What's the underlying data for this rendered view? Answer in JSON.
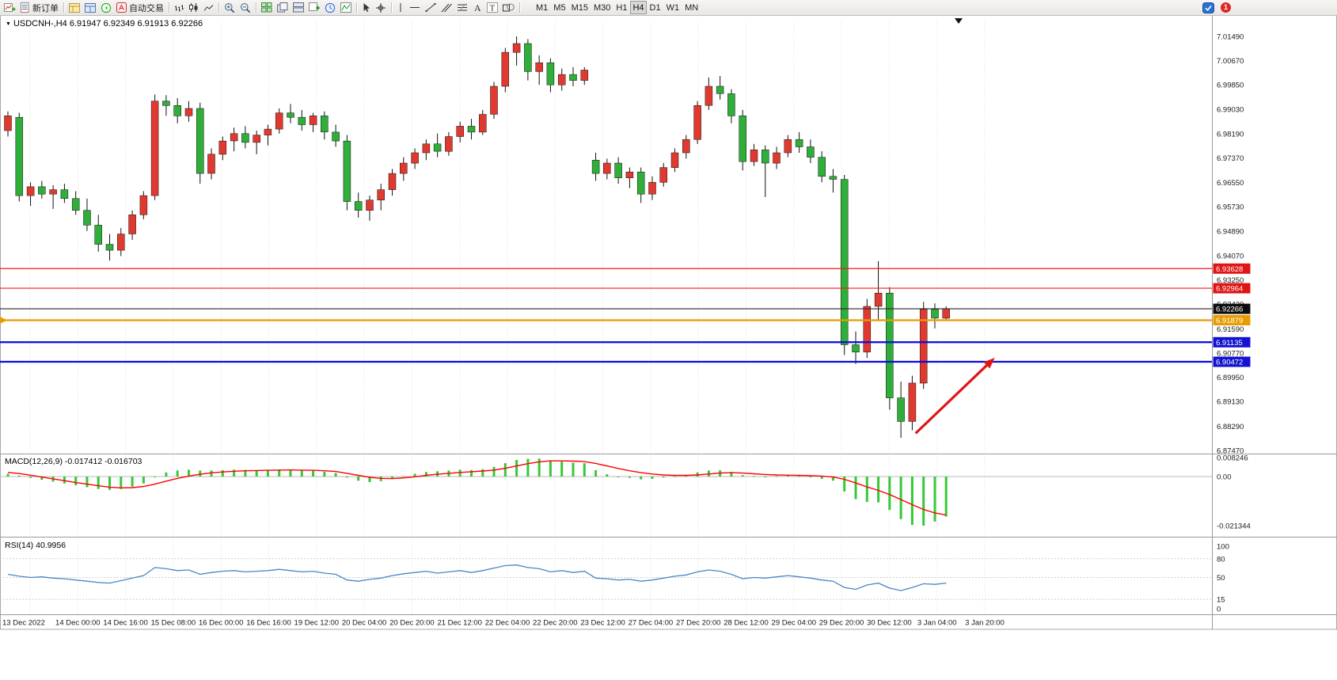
{
  "toolbar": {
    "new_order_label": "新订单",
    "autotrading_label": "自动交易",
    "timeframes": [
      "M1",
      "M5",
      "M15",
      "M30",
      "H1",
      "H4",
      "D1",
      "W1",
      "MN"
    ],
    "active_timeframe": "H4",
    "notification_count": "1"
  },
  "chart": {
    "symbol_label": "USDCNH-,H4",
    "ohlc_label": "6.91947 6.92349 6.91913 6.92266"
  },
  "chart_data": [
    {
      "type": "candlestick",
      "title": "USDCNH-,H4",
      "symbol": "USDCNH-",
      "timeframe": "H4",
      "current": {
        "open": "6.91947",
        "high": "6.92349",
        "low": "6.91913",
        "close": "6.92266"
      },
      "up_color": "#e03a30",
      "down_color": "#2fae3a",
      "ylim": [
        6.87,
        7.02
      ],
      "y_axis_labels": [
        "7.01490",
        "7.00670",
        "6.99850",
        "6.99030",
        "6.98190",
        "6.97370",
        "6.96550",
        "6.95730",
        "6.94890",
        "6.94070",
        "6.93250",
        "6.92430",
        "6.91590",
        "6.90770",
        "6.89950",
        "6.89130",
        "6.88290",
        "6.87470"
      ],
      "x_axis_labels": [
        "13 Dec 2022",
        "14 Dec 00:00",
        "14 Dec 16:00",
        "15 Dec 08:00",
        "16 Dec 00:00",
        "16 Dec 16:00",
        "19 Dec 12:00",
        "20 Dec 04:00",
        "20 Dec 20:00",
        "21 Dec 12:00",
        "22 Dec 04:00",
        "22 Dec 20:00",
        "23 Dec 12:00",
        "27 Dec 04:00",
        "27 Dec 20:00",
        "28 Dec 12:00",
        "29 Dec 04:00",
        "29 Dec 20:00",
        "30 Dec 12:00",
        "3 Jan 04:00",
        "3 Jan 20:00"
      ],
      "candles": [
        [
          6.983,
          6.9895,
          6.981,
          6.988
        ],
        [
          6.9875,
          6.989,
          6.959,
          6.961
        ],
        [
          6.961,
          6.9655,
          6.9575,
          6.964
        ],
        [
          6.964,
          6.966,
          6.96,
          6.9615
        ],
        [
          6.9615,
          6.9645,
          6.9565,
          6.963
        ],
        [
          6.963,
          6.965,
          6.9585,
          6.96
        ],
        [
          6.96,
          6.9625,
          6.9545,
          6.956
        ],
        [
          6.956,
          6.96,
          6.949,
          6.951
        ],
        [
          6.951,
          6.9545,
          6.942,
          6.9445
        ],
        [
          6.9445,
          6.948,
          6.939,
          6.9425
        ],
        [
          6.9425,
          6.95,
          6.9405,
          6.948
        ],
        [
          6.948,
          6.956,
          6.946,
          6.9545
        ],
        [
          6.9545,
          6.9625,
          6.953,
          6.961
        ],
        [
          6.961,
          6.9952,
          6.9595,
          6.993
        ],
        [
          6.993,
          6.995,
          6.988,
          6.9915
        ],
        [
          6.9915,
          6.994,
          6.9855,
          6.988
        ],
        [
          6.988,
          6.993,
          6.986,
          6.9905
        ],
        [
          6.9905,
          6.9925,
          6.965,
          6.9685
        ],
        [
          6.9685,
          6.977,
          6.9665,
          6.975
        ],
        [
          6.975,
          6.981,
          6.973,
          6.9795
        ],
        [
          6.9795,
          6.984,
          6.976,
          6.982
        ],
        [
          6.982,
          6.9845,
          6.977,
          6.979
        ],
        [
          6.979,
          6.983,
          6.975,
          6.9815
        ],
        [
          6.9815,
          6.985,
          6.978,
          6.9835
        ],
        [
          6.9835,
          6.9905,
          6.982,
          6.989
        ],
        [
          6.989,
          6.992,
          6.9855,
          6.9875
        ],
        [
          6.9875,
          6.99,
          6.983,
          6.985
        ],
        [
          6.985,
          6.989,
          6.9825,
          6.988
        ],
        [
          6.988,
          6.9895,
          6.98,
          6.9825
        ],
        [
          6.9825,
          6.985,
          6.9775,
          6.9795
        ],
        [
          6.9795,
          6.9815,
          6.956,
          6.959
        ],
        [
          6.959,
          6.962,
          6.9535,
          6.956
        ],
        [
          6.956,
          6.961,
          6.9525,
          6.9595
        ],
        [
          6.9595,
          6.965,
          6.956,
          6.963
        ],
        [
          6.963,
          6.97,
          6.961,
          6.9685
        ],
        [
          6.9685,
          6.974,
          6.966,
          6.972
        ],
        [
          6.972,
          6.977,
          6.97,
          6.9755
        ],
        [
          6.9755,
          6.98,
          6.973,
          6.9785
        ],
        [
          6.9785,
          6.982,
          6.974,
          6.976
        ],
        [
          6.976,
          6.9825,
          6.9745,
          6.981
        ],
        [
          6.981,
          6.986,
          6.979,
          6.9845
        ],
        [
          6.9845,
          6.987,
          6.98,
          6.9825
        ],
        [
          6.9825,
          6.99,
          6.9815,
          6.9885
        ],
        [
          6.9885,
          6.9995,
          6.987,
          6.998
        ],
        [
          6.998,
          7.011,
          6.996,
          7.0095
        ],
        [
          7.0095,
          7.0149,
          7.005,
          7.0125
        ],
        [
          7.0125,
          7.014,
          7.0,
          7.003
        ],
        [
          7.003,
          7.0085,
          6.9985,
          7.006
        ],
        [
          7.006,
          7.0075,
          6.996,
          6.9985
        ],
        [
          6.9985,
          7.004,
          6.9965,
          7.002
        ],
        [
          7.002,
          7.0045,
          6.998,
          7.0
        ],
        [
          7.0,
          7.0045,
          6.9985,
          7.0035
        ],
        [
          6.973,
          6.9755,
          6.966,
          6.9685
        ],
        [
          6.9685,
          6.9735,
          6.9665,
          6.972
        ],
        [
          6.972,
          6.974,
          6.965,
          6.967
        ],
        [
          6.967,
          6.9705,
          6.9635,
          6.969
        ],
        [
          6.969,
          6.9705,
          6.9585,
          6.9615
        ],
        [
          6.9615,
          6.9675,
          6.9595,
          6.9655
        ],
        [
          6.9655,
          6.972,
          6.964,
          6.9705
        ],
        [
          6.9705,
          6.977,
          6.969,
          6.9755
        ],
        [
          6.9755,
          6.9815,
          6.9735,
          6.98
        ],
        [
          6.98,
          6.993,
          6.9785,
          6.9915
        ],
        [
          6.9915,
          7.001,
          6.99,
          6.998
        ],
        [
          6.998,
          7.0015,
          6.9935,
          6.9955
        ],
        [
          6.9955,
          6.997,
          6.9855,
          6.988
        ],
        [
          6.988,
          6.99,
          6.9695,
          6.9725
        ],
        [
          6.9725,
          6.9785,
          6.971,
          6.9765
        ],
        [
          6.9765,
          6.978,
          6.9605,
          6.972
        ],
        [
          6.972,
          6.9775,
          6.97,
          6.9755
        ],
        [
          6.9755,
          6.9815,
          6.974,
          6.98
        ],
        [
          6.98,
          6.9825,
          6.9755,
          6.9775
        ],
        [
          6.9775,
          6.98,
          6.972,
          6.974
        ],
        [
          6.974,
          6.976,
          6.9655,
          6.9675
        ],
        [
          6.9675,
          6.97,
          6.962,
          6.9665
        ],
        [
          6.9665,
          6.968,
          6.907,
          6.9105
        ],
        [
          6.9105,
          6.915,
          6.904,
          6.908
        ],
        [
          6.908,
          6.926,
          6.906,
          6.9235
        ],
        [
          6.9235,
          6.9388,
          6.9185,
          6.928
        ],
        [
          6.928,
          6.93,
          6.8885,
          6.8925
        ],
        [
          6.8925,
          6.898,
          6.879,
          6.8845
        ],
        [
          6.8845,
          6.9,
          6.8815,
          6.8975
        ],
        [
          6.8975,
          6.925,
          6.8955,
          6.9225
        ],
        [
          6.9225,
          6.9245,
          6.916,
          6.9195
        ],
        [
          6.91947,
          6.92349,
          6.91913,
          6.92266
        ]
      ],
      "hlines": [
        {
          "price": 6.93628,
          "color": "#ff1414",
          "width": 1.2,
          "tag": "6.93628",
          "tag_bg": "#df1414"
        },
        {
          "price": 6.92964,
          "color": "#ff1414",
          "width": 1.2,
          "tag": "6.92964",
          "tag_bg": "#df1414"
        },
        {
          "price": 6.92266,
          "color": "#2a2a2a",
          "width": 1.1,
          "tag": "6.92266",
          "tag_bg": "#0d0d0d"
        },
        {
          "price": 6.91879,
          "color": "#e89c00",
          "width": 2.2,
          "tag": "6.91879",
          "tag_bg": "#e89c00",
          "left_marker": true
        },
        {
          "price": 6.91135,
          "color": "#0a0ae0",
          "width": 2.2,
          "tag": "6.91135",
          "tag_bg": "#1212cf"
        },
        {
          "price": 6.90472,
          "color": "#0a0ae0",
          "width": 2.2,
          "tag": "6.90472",
          "tag_bg": "#1212cf"
        }
      ],
      "annotation_arrow": {
        "color": "#e01515",
        "from": {
          "bar": 80.3,
          "price": 6.8805
        },
        "to": {
          "bar": 87.3,
          "price": 6.9061
        }
      }
    },
    {
      "type": "line",
      "title": "MACD(12,26,9)",
      "values_label": "-0.017412 -0.016703",
      "hist_color": "#35c935",
      "signal_color": "#ff0000",
      "ylim": [
        -0.0254,
        0.0089
      ],
      "y_axis_labels": [
        "0.008246",
        "0.00",
        "-0.021344"
      ],
      "histogram": [
        0.0012,
        0.0004,
        -0.0006,
        -0.0014,
        -0.0022,
        -0.003,
        -0.0038,
        -0.0046,
        -0.0054,
        -0.0058,
        -0.0054,
        -0.0044,
        -0.003,
        -0.0002,
        0.0018,
        0.0026,
        0.003,
        0.0026,
        0.0026,
        0.0028,
        0.003,
        0.0029,
        0.0028,
        0.0029,
        0.0031,
        0.003,
        0.0027,
        0.0025,
        0.0021,
        0.0015,
        -0.0004,
        -0.0018,
        -0.0024,
        -0.002,
        -0.001,
        0.0002,
        0.0012,
        0.002,
        0.0023,
        0.0026,
        0.003,
        0.0028,
        0.0032,
        0.0042,
        0.0058,
        0.0072,
        0.0077,
        0.0078,
        0.007,
        0.0065,
        0.006,
        0.0058,
        0.0028,
        0.001,
        -0.0002,
        -0.0006,
        -0.0012,
        -0.001,
        -0.0004,
        0.0002,
        0.0008,
        0.0018,
        0.0026,
        0.0027,
        0.002,
        0.0006,
        0.0002,
        0.0,
        0.0002,
        0.0005,
        0.0003,
        -0.0002,
        -0.001,
        -0.0018,
        -0.0065,
        -0.0098,
        -0.011,
        -0.0112,
        -0.0145,
        -0.0185,
        -0.021,
        -0.0213,
        -0.0196,
        -0.0174
      ],
      "signal": [
        0.0018,
        0.0013,
        0.0006,
        -0.0002,
        -0.001,
        -0.0018,
        -0.0026,
        -0.0033,
        -0.004,
        -0.0046,
        -0.0049,
        -0.0048,
        -0.0043,
        -0.0033,
        -0.002,
        -0.0008,
        0.0002,
        0.001,
        0.0016,
        0.002,
        0.0023,
        0.0025,
        0.0026,
        0.0027,
        0.0028,
        0.0029,
        0.0028,
        0.0027,
        0.0025,
        0.0022,
        0.0014,
        0.0005,
        -0.0003,
        -0.0008,
        -0.0009,
        -0.0006,
        -0.0001,
        0.0005,
        0.001,
        0.0014,
        0.0018,
        0.0021,
        0.0024,
        0.0028,
        0.0036,
        0.0046,
        0.0056,
        0.0064,
        0.0068,
        0.0068,
        0.0067,
        0.0065,
        0.0057,
        0.0046,
        0.0035,
        0.0025,
        0.0017,
        0.0011,
        0.0007,
        0.0005,
        0.0005,
        0.0007,
        0.0011,
        0.0015,
        0.0017,
        0.0015,
        0.0012,
        0.0009,
        0.0007,
        0.0006,
        0.0005,
        0.0004,
        0.0002,
        -0.0002,
        -0.0012,
        -0.0028,
        -0.0045,
        -0.006,
        -0.0078,
        -0.01,
        -0.0122,
        -0.0143,
        -0.0158,
        -0.0167
      ]
    },
    {
      "type": "line",
      "title": "RSI(14)",
      "value_label": "40.9956",
      "line_color": "#4a86c8",
      "ylim": [
        0,
        100
      ],
      "levels": [
        80,
        50,
        15
      ],
      "y_axis_labels": [
        "100",
        "80",
        "50",
        "15",
        "0"
      ],
      "values": [
        55,
        52,
        50,
        51,
        49,
        48,
        46,
        44,
        42,
        41,
        45,
        49,
        53,
        66,
        64,
        61,
        62,
        55,
        58,
        60,
        61,
        59,
        60,
        61,
        63,
        61,
        59,
        60,
        57,
        55,
        46,
        44,
        47,
        49,
        53,
        56,
        58,
        60,
        57,
        59,
        61,
        58,
        61,
        65,
        69,
        70,
        66,
        64,
        59,
        61,
        58,
        60,
        49,
        48,
        46,
        47,
        44,
        46,
        49,
        52,
        54,
        59,
        62,
        60,
        55,
        48,
        50,
        49,
        51,
        53,
        51,
        49,
        46,
        44,
        34,
        31,
        38,
        41,
        33,
        29,
        34,
        40,
        39,
        41
      ]
    }
  ]
}
